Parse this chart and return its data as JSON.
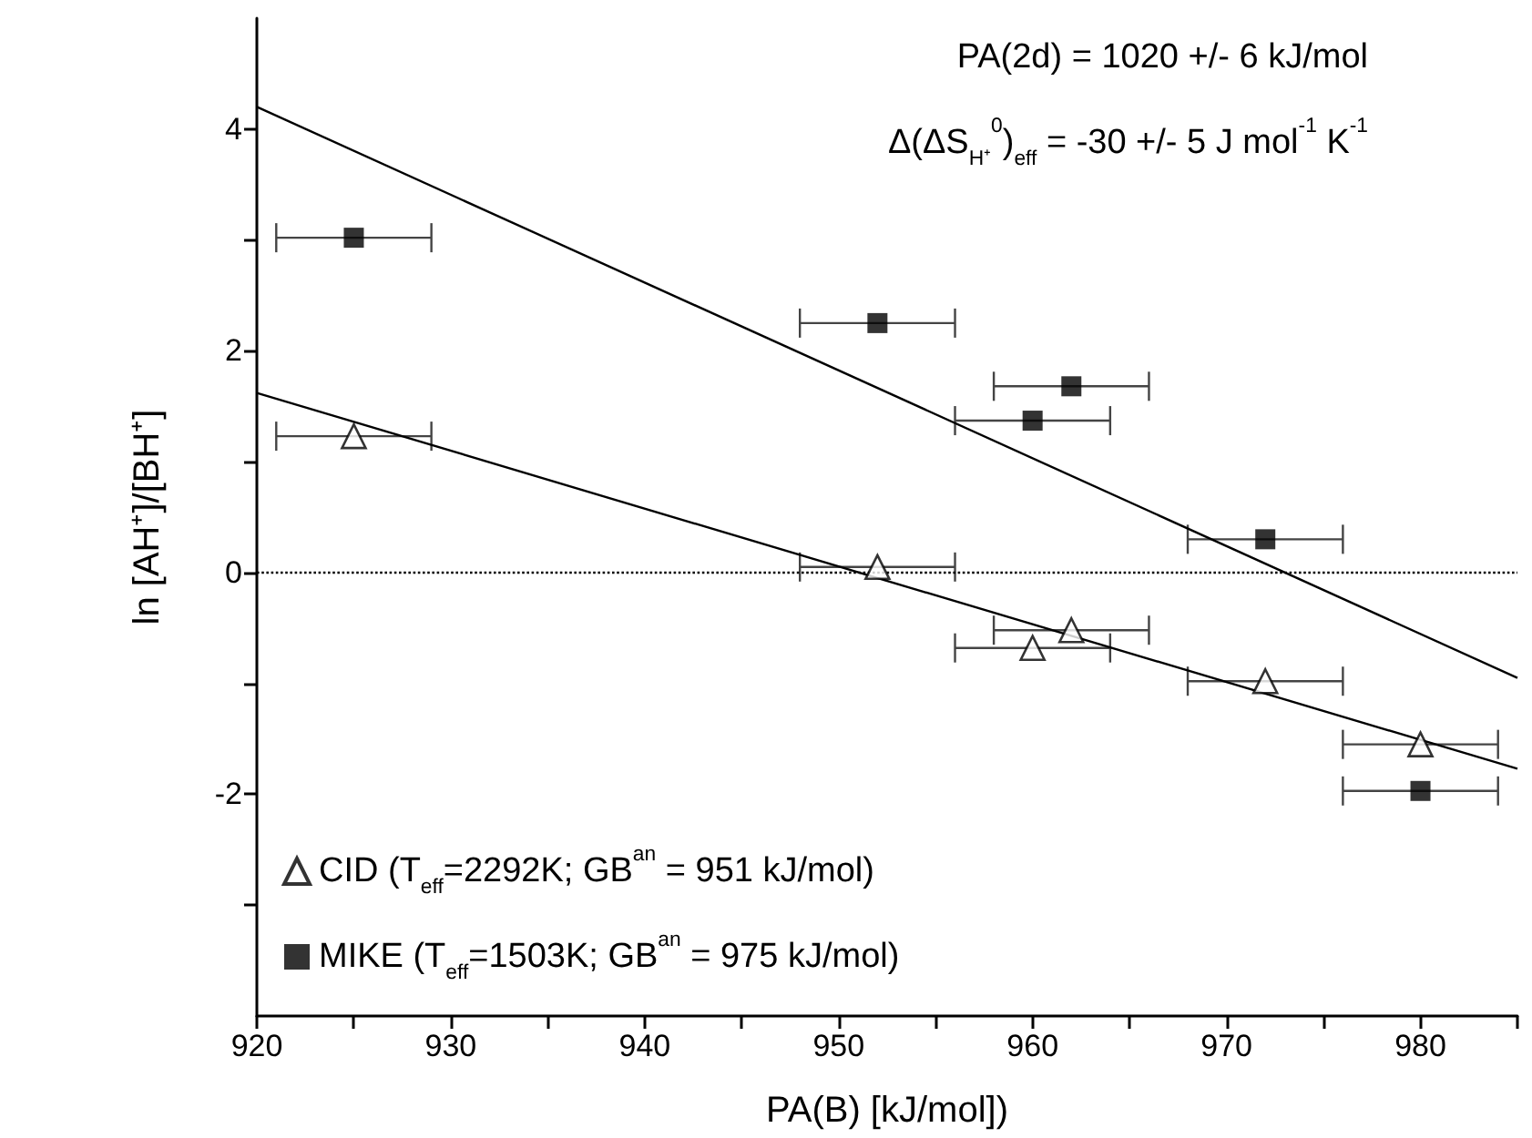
{
  "chart_data": {
    "type": "scatter",
    "xlabel": "PA(B) [kJ/mol])",
    "ylabel": "ln [AH⁺]/[BH⁺]",
    "xlim": [
      920,
      985
    ],
    "xticks": [
      920,
      {
        "value": 925,
        "label": null
      },
      930,
      {
        "value": 935,
        "label": null
      },
      940,
      {
        "value": 945,
        "label": null
      },
      950,
      {
        "value": 955,
        "label": null
      },
      960,
      {
        "value": 965,
        "label": null
      },
      970,
      {
        "value": 975,
        "label": null
      },
      980,
      {
        "value": 985,
        "label": null
      }
    ],
    "ylim": [
      -4,
      5
    ],
    "yticks": [
      {
        "value": -3,
        "label": null
      },
      -2,
      {
        "value": -1,
        "label": null
      },
      0,
      {
        "value": 1,
        "label": null
      },
      2,
      {
        "value": 3,
        "label": null
      },
      4
    ],
    "grid": false,
    "legend": "bottom left",
    "series": [
      {
        "name": "CID (T$_{eff}$=2292K; GB$^{an}$ = 951 kJ/mol)",
        "color": "#000000",
        "marker": "triangle",
        "x": [
          925,
          952,
          960,
          962,
          972,
          980
        ],
        "values": [
          1.23,
          0.05,
          -0.68,
          -0.52,
          -0.98,
          -1.55
        ],
        "xerrors": [
          4,
          4,
          4,
          4,
          4,
          4
        ]
      },
      {
        "name": "MIKE (T$_{eff}$=1503K; GB$^{an}$ = 975 kJ/mol)",
        "color": "#000000",
        "marker": "square",
        "x": [
          925,
          952,
          960,
          962,
          972,
          980
        ],
        "values": [
          3.02,
          2.25,
          1.37,
          1.68,
          0.3,
          -1.97
        ],
        "xerrors": [
          4,
          4,
          4,
          4,
          4,
          4
        ]
      },
      {
        "type": "line",
        "color": "#000000",
        "marker": "none",
        "x": [
          920,
          985
        ],
        "values": [
          1.62,
          -1.77
        ]
      },
      {
        "type": "line",
        "color": "#000000",
        "marker": "none",
        "x": [
          920,
          985
        ],
        "values": [
          4.2,
          -0.95
        ]
      }
    ],
    "ref_lines": [
      {
        "axis": "y",
        "value": 0,
        "line_style": "dotted",
        "color": "#000000"
      }
    ],
    "annotations": [
      "PA(2d) = 1020 +/- 6 kJ/mol",
      "Δ(ΔS$_{H⁺}$$^{0}$)$_{eff}$ = -30 +/- 5 J mol$^{-1}$ K$^{-1}$"
    ]
  }
}
